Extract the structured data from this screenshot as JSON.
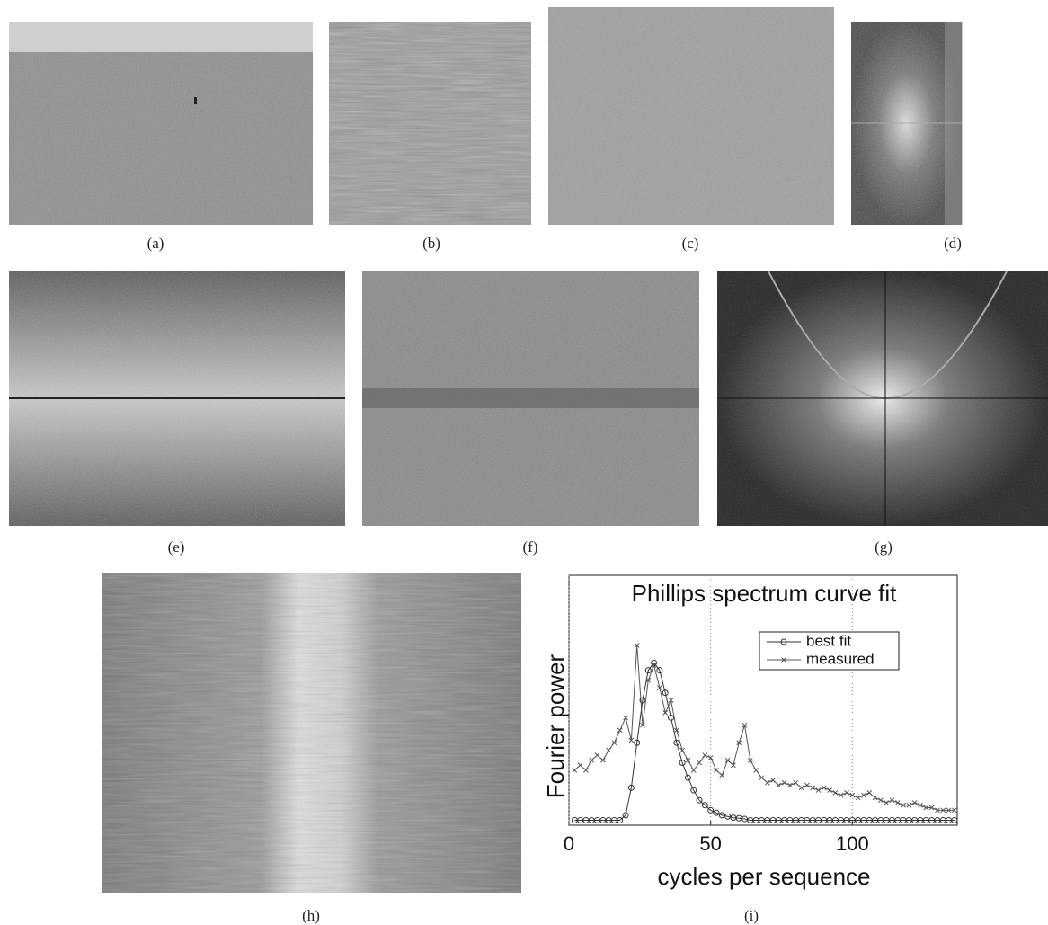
{
  "panels": [
    {
      "label": "(a)"
    },
    {
      "label": "(b)"
    },
    {
      "label": "(c)"
    },
    {
      "label": "(d)"
    },
    {
      "label": "(e)"
    },
    {
      "label": "(f)"
    },
    {
      "label": "(g)"
    },
    {
      "label": "(h)"
    },
    {
      "label": "(i)"
    }
  ],
  "chart_data": {
    "type": "line",
    "title": "Phillips spectrum curve fit",
    "x_label": "cycles per sequence",
    "y_label": "Fourier power",
    "x": [
      2,
      4,
      6,
      8,
      10,
      12,
      14,
      16,
      18,
      20,
      22,
      24,
      26,
      28,
      30,
      32,
      34,
      36,
      38,
      40,
      42,
      44,
      46,
      48,
      50,
      52,
      54,
      56,
      58,
      60,
      62,
      64,
      66,
      68,
      70,
      72,
      74,
      76,
      78,
      80,
      82,
      84,
      86,
      88,
      90,
      92,
      94,
      96,
      98,
      100,
      102,
      104,
      106,
      108,
      110,
      112,
      114,
      116,
      118,
      120,
      122,
      124,
      126,
      128,
      130,
      132,
      134,
      136
    ],
    "series": [
      {
        "name": "best fit",
        "color": "#333333",
        "marker": "o",
        "values": [
          0.02,
          0.02,
          0.02,
          0.02,
          0.02,
          0.02,
          0.02,
          0.02,
          0.02,
          0.04,
          0.15,
          0.33,
          0.5,
          0.62,
          0.65,
          0.62,
          0.53,
          0.43,
          0.33,
          0.25,
          0.19,
          0.14,
          0.1,
          0.08,
          0.06,
          0.05,
          0.04,
          0.035,
          0.03,
          0.028,
          0.025,
          0.02,
          0.02,
          0.02,
          0.02,
          0.02,
          0.02,
          0.02,
          0.02,
          0.02,
          0.02,
          0.02,
          0.02,
          0.02,
          0.02,
          0.02,
          0.02,
          0.02,
          0.02,
          0.02,
          0.02,
          0.02,
          0.02,
          0.02,
          0.02,
          0.02,
          0.02,
          0.02,
          0.02,
          0.02,
          0.02,
          0.02,
          0.02,
          0.02,
          0.02,
          0.02,
          0.02,
          0.02
        ]
      },
      {
        "name": "measured",
        "color": "#555555",
        "marker": "x",
        "values": [
          0.22,
          0.24,
          0.22,
          0.26,
          0.28,
          0.26,
          0.3,
          0.33,
          0.38,
          0.43,
          0.34,
          0.72,
          0.4,
          0.58,
          0.64,
          0.55,
          0.45,
          0.5,
          0.38,
          0.3,
          0.26,
          0.22,
          0.25,
          0.28,
          0.27,
          0.22,
          0.2,
          0.26,
          0.24,
          0.33,
          0.4,
          0.26,
          0.22,
          0.19,
          0.17,
          0.18,
          0.16,
          0.17,
          0.16,
          0.17,
          0.15,
          0.16,
          0.15,
          0.14,
          0.15,
          0.14,
          0.13,
          0.12,
          0.13,
          0.12,
          0.11,
          0.12,
          0.13,
          0.11,
          0.1,
          0.09,
          0.1,
          0.09,
          0.08,
          0.08,
          0.09,
          0.08,
          0.07,
          0.07,
          0.06,
          0.06,
          0.06,
          0.06
        ]
      }
    ],
    "xlim": [
      0,
      137
    ],
    "ylim": [
      0,
      1
    ],
    "xticks": [
      0,
      50,
      100
    ],
    "grid": "x-dotted",
    "legend": "top-right"
  }
}
